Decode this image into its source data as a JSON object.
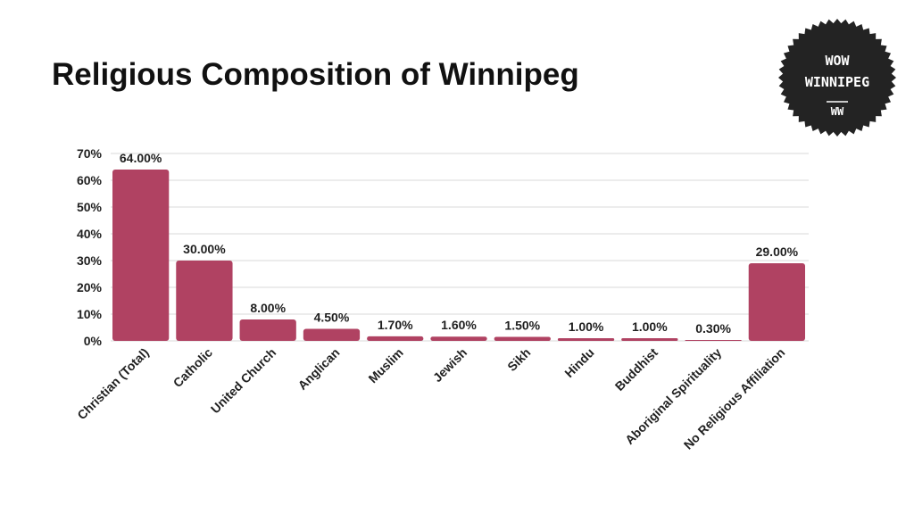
{
  "title": "Religious Composition of Winnipeg",
  "logo": {
    "line1": "WOW",
    "line2": "WINNIPEG",
    "line3": "WW",
    "shape": "seal-badge",
    "color": "#232323"
  },
  "colors": {
    "bar": "#b04262",
    "grid": "#d9d9d9",
    "text": "#1f1f1f"
  },
  "chart_data": {
    "type": "bar",
    "title": "Religious Composition of Winnipeg",
    "xlabel": "",
    "ylabel": "",
    "categories": [
      "Christian (Total)",
      "Catholic",
      "United Church",
      "Anglican",
      "Muslim",
      "Jewish",
      "Sikh",
      "Hindu",
      "Buddhist",
      "Aboriginal Spirituality",
      "No Religious Affiliation"
    ],
    "values": [
      64.0,
      30.0,
      8.0,
      4.5,
      1.7,
      1.6,
      1.5,
      1.0,
      1.0,
      0.3,
      29.0
    ],
    "data_labels": [
      "64.00%",
      "30.00%",
      "8.00%",
      "4.50%",
      "1.70%",
      "1.60%",
      "1.50%",
      "1.00%",
      "1.00%",
      "0.30%",
      "29.00%"
    ],
    "yticks": [
      0,
      10,
      20,
      30,
      40,
      50,
      60,
      70
    ],
    "ytick_labels": [
      "0%",
      "10%",
      "20%",
      "30%",
      "40%",
      "50%",
      "60%",
      "70%"
    ],
    "ylim": [
      0,
      70
    ],
    "grid": true,
    "legend": "none"
  }
}
